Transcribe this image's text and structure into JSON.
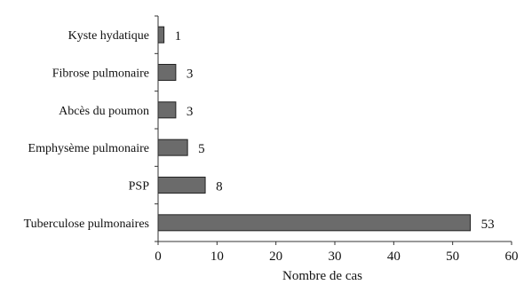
{
  "chart_data": {
    "type": "bar",
    "orientation": "horizontal",
    "categories": [
      "Kyste hydatique",
      "Fibrose pulmonaire",
      "Abcès du poumon",
      "Emphysème pulmonaire",
      "PSP",
      "Tuberculose pulmonaires"
    ],
    "values": [
      1,
      3,
      3,
      5,
      8,
      53
    ],
    "data_labels": [
      "1",
      "3",
      "3",
      "5",
      "8",
      "53"
    ],
    "xlabel": "Nombre de cas",
    "xlim": [
      0,
      60
    ],
    "xticks": [
      0,
      10,
      20,
      30,
      40,
      50,
      60
    ],
    "xtick_labels": [
      "0",
      "10",
      "20",
      "30",
      "40",
      "50",
      "60"
    ],
    "grid": false,
    "colors": {
      "bar_fill": "#6b6b6b",
      "bar_stroke": "#222222",
      "axis": "#333333"
    }
  }
}
